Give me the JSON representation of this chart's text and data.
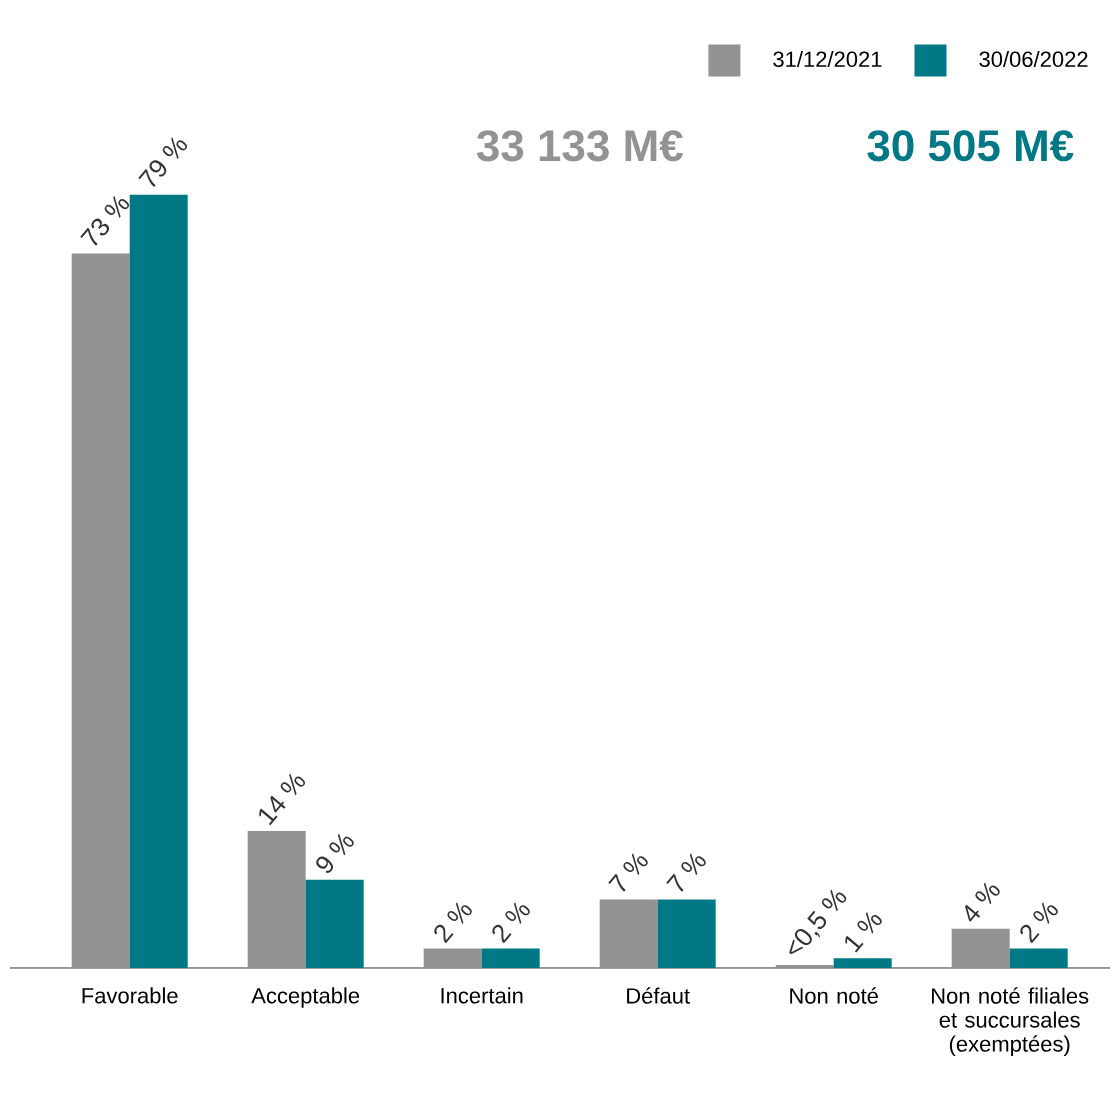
{
  "chart_data": {
    "type": "bar",
    "categories": [
      "Favorable",
      "Acceptable",
      "Incertain",
      "Défaut",
      "Non noté",
      "Non noté filiales et succursales (exemptées)"
    ],
    "series": [
      {
        "name": "31/12/2021",
        "color": "#939393",
        "values": [
          73,
          14,
          2,
          7,
          0.3,
          4
        ],
        "value_labels": [
          "73 %",
          "14 %",
          "2 %",
          "7 %",
          "<0,5 %",
          "4 %"
        ]
      },
      {
        "name": "30/06/2022",
        "color": "#007885",
        "values": [
          79,
          9,
          2,
          7,
          1,
          2
        ],
        "value_labels": [
          "79 %",
          "9 %",
          "2 %",
          "7 %",
          "1 %",
          "2 %"
        ]
      }
    ],
    "annotations": [
      "33 133 M€",
      "30 505 M€"
    ],
    "legend": "top right"
  }
}
